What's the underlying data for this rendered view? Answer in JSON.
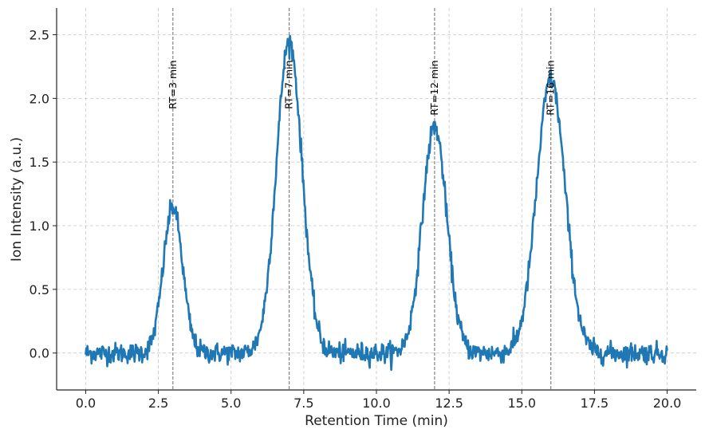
{
  "chart_data": {
    "type": "line",
    "title": "",
    "xlabel": "Retention Time (min)",
    "ylabel": "Ion Intensity (a.u.)",
    "xlim": [
      -1.0,
      21.0
    ],
    "ylim": [
      -0.29,
      2.71
    ],
    "xticks": [
      0.0,
      2.5,
      5.0,
      7.5,
      10.0,
      12.5,
      15.0,
      17.5,
      20.0
    ],
    "xtick_labels": [
      "0.0",
      "2.5",
      "5.0",
      "7.5",
      "10.0",
      "12.5",
      "15.0",
      "17.5",
      "20.0"
    ],
    "yticks": [
      0.0,
      0.5,
      1.0,
      1.5,
      2.0,
      2.5
    ],
    "ytick_labels": [
      "0.0",
      "0.5",
      "1.0",
      "1.5",
      "2.0",
      "2.5"
    ],
    "grid": true,
    "series_color": "#1f77b4",
    "x_range": [
      0,
      20
    ],
    "n_points": 1000,
    "noise_sd": 0.04,
    "peaks": [
      {
        "rt": 3,
        "height": 1.15,
        "sigma": 0.33
      },
      {
        "rt": 7,
        "height": 2.45,
        "sigma": 0.44
      },
      {
        "rt": 12,
        "height": 1.78,
        "sigma": 0.42
      },
      {
        "rt": 16,
        "height": 2.15,
        "sigma": 0.49
      }
    ],
    "annotations": [
      {
        "x": 3,
        "label": "RT=3 min"
      },
      {
        "x": 7,
        "label": "RT=7 min"
      },
      {
        "x": 12,
        "label": "RT=12 min"
      },
      {
        "x": 16,
        "label": "RT=16 min"
      }
    ],
    "annotation_y": 2.3
  }
}
